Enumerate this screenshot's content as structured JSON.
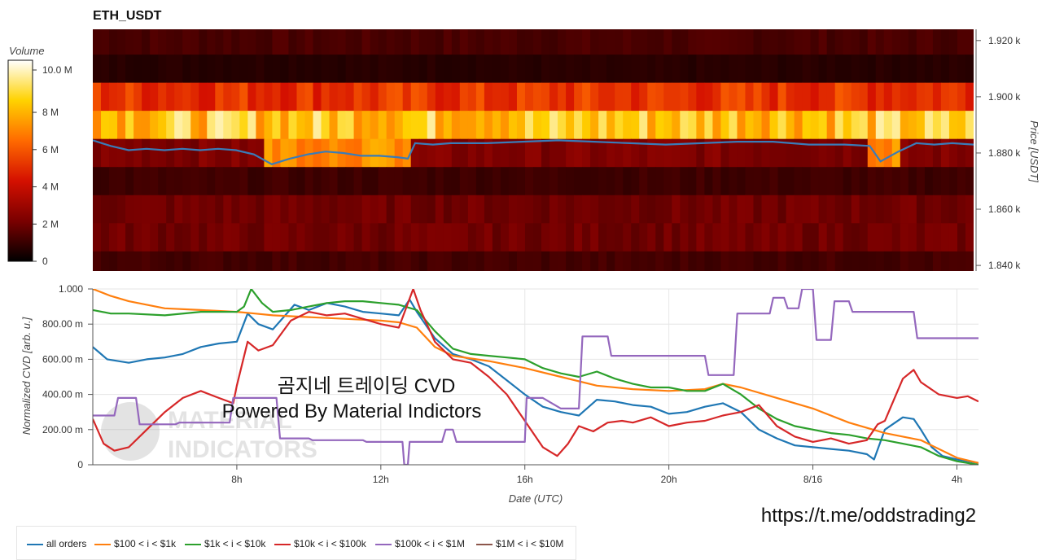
{
  "chart_data": [
    {
      "type": "heatmap",
      "title": "ETH_USDT",
      "colorbar": {
        "label": "Volume",
        "ticks": [
          "0",
          "2 M",
          "4 M",
          "6 M",
          "8 M",
          "10.0 M"
        ],
        "range": [
          0,
          10800000
        ]
      },
      "y_axis": {
        "label": "Price [USDT]",
        "ticks": [
          "1.840 k",
          "1.860 k",
          "1.880 k",
          "1.900 k",
          "1.920 k"
        ],
        "range": [
          1838,
          1924
        ]
      },
      "price_bands": [
        {
          "low": 1915,
          "high": 1924,
          "volume_M": 1.3
        },
        {
          "low": 1905,
          "high": 1915,
          "volume_M": 0.7
        },
        {
          "low": 1895,
          "high": 1905,
          "volume_M": 5.2
        },
        {
          "low": 1885,
          "high": 1895,
          "volume_M": 8.6
        },
        {
          "low": 1875,
          "high": 1885,
          "volume_M": 2.3
        },
        {
          "low": 1865,
          "high": 1875,
          "volume_M": 1.1
        },
        {
          "low": 1855,
          "high": 1865,
          "volume_M": 2.0
        },
        {
          "low": 1845,
          "high": 1855,
          "volume_M": 2.0
        },
        {
          "low": 1838,
          "high": 1845,
          "volume_M": 1.2
        }
      ],
      "price_line_color": "#3a7cb8",
      "price_series": {
        "x_hours": [
          4.0,
          4.5,
          5.0,
          5.5,
          6.0,
          6.5,
          7.0,
          7.5,
          8.0,
          8.5,
          9.0,
          9.5,
          10.0,
          10.5,
          11.0,
          11.5,
          12.0,
          12.5,
          12.8,
          13.0,
          13.5,
          14.0,
          15.0,
          16.0,
          17.0,
          18.0,
          19.0,
          20.0,
          21.0,
          22.0,
          23.0,
          24.0,
          25.0,
          25.7,
          26.0,
          26.5,
          27.0,
          27.5,
          28.0,
          28.6
        ],
        "price": [
          1884.5,
          1882.5,
          1881.0,
          1881.5,
          1881.0,
          1881.5,
          1881.0,
          1881.5,
          1881.0,
          1879.5,
          1876.0,
          1878.0,
          1879.5,
          1880.5,
          1880.0,
          1879.0,
          1879.0,
          1878.5,
          1878.0,
          1883.5,
          1883.0,
          1883.5,
          1883.5,
          1884.0,
          1884.5,
          1884.0,
          1883.5,
          1883.0,
          1883.5,
          1884.0,
          1884.0,
          1883.0,
          1883.0,
          1882.5,
          1877.0,
          1880.5,
          1883.5,
          1883.0,
          1883.5,
          1883.0
        ]
      }
    },
    {
      "type": "line",
      "xlabel": "Date (UTC)",
      "ylabel": "Normalized CVD [arb. u.]",
      "x_ticks": [
        "8h",
        "12h",
        "16h",
        "20h",
        "8/16",
        "4h"
      ],
      "x_tick_hours": [
        8,
        12,
        16,
        20,
        24,
        28
      ],
      "xlim": [
        4.0,
        28.6
      ],
      "y_ticks": [
        "0",
        "200.00 m",
        "400.00 m",
        "600.00 m",
        "800.00 m",
        "1.000"
      ],
      "ylim": [
        0,
        1.0
      ],
      "series": [
        {
          "name": "all orders",
          "color": "#1f77b4",
          "x": [
            4.0,
            4.4,
            5.0,
            5.5,
            6.0,
            6.5,
            7.0,
            7.5,
            8.0,
            8.3,
            8.6,
            9.0,
            9.3,
            9.6,
            10.0,
            10.5,
            11.0,
            11.5,
            12.0,
            12.5,
            12.8,
            13.0,
            13.5,
            14.0,
            14.5,
            15.0,
            15.5,
            16.0,
            16.5,
            17.0,
            17.5,
            18.0,
            18.5,
            19.0,
            19.5,
            20.0,
            20.5,
            21.0,
            21.5,
            22.0,
            22.5,
            23.0,
            23.5,
            24.0,
            24.5,
            25.0,
            25.5,
            25.7,
            26.0,
            26.5,
            26.8,
            27.0,
            27.3,
            27.6,
            28.0,
            28.3,
            28.6
          ],
          "y": [
            0.67,
            0.6,
            0.58,
            0.6,
            0.61,
            0.63,
            0.67,
            0.69,
            0.7,
            0.86,
            0.8,
            0.77,
            0.84,
            0.91,
            0.88,
            0.92,
            0.9,
            0.87,
            0.86,
            0.85,
            0.94,
            0.87,
            0.72,
            0.63,
            0.6,
            0.56,
            0.48,
            0.4,
            0.33,
            0.3,
            0.28,
            0.37,
            0.36,
            0.34,
            0.33,
            0.29,
            0.3,
            0.33,
            0.35,
            0.3,
            0.2,
            0.15,
            0.11,
            0.1,
            0.09,
            0.08,
            0.06,
            0.03,
            0.2,
            0.27,
            0.26,
            0.2,
            0.1,
            0.05,
            0.03,
            0.02,
            0.01
          ]
        },
        {
          "name": "$100 < i < $1k",
          "color": "#ff7f0e",
          "x": [
            4.0,
            4.5,
            5.0,
            6.0,
            7.0,
            8.0,
            8.5,
            9.0,
            10.0,
            11.0,
            12.0,
            12.5,
            13.0,
            13.5,
            14.0,
            15.0,
            16.0,
            17.0,
            18.0,
            19.0,
            20.0,
            21.0,
            21.5,
            22.0,
            23.0,
            24.0,
            25.0,
            26.0,
            27.0,
            28.0,
            28.6
          ],
          "y": [
            1.0,
            0.96,
            0.93,
            0.89,
            0.88,
            0.87,
            0.86,
            0.85,
            0.84,
            0.83,
            0.82,
            0.81,
            0.78,
            0.67,
            0.62,
            0.59,
            0.55,
            0.5,
            0.45,
            0.43,
            0.42,
            0.43,
            0.46,
            0.44,
            0.38,
            0.32,
            0.24,
            0.18,
            0.14,
            0.04,
            0.01
          ]
        },
        {
          "name": "$1k < i < $10k",
          "color": "#2ca02c",
          "x": [
            4.0,
            4.5,
            5.0,
            6.0,
            7.0,
            8.0,
            8.2,
            8.4,
            8.7,
            9.0,
            9.5,
            10.0,
            10.5,
            11.0,
            11.5,
            12.0,
            12.5,
            13.0,
            13.5,
            14.0,
            14.5,
            15.0,
            15.5,
            16.0,
            16.5,
            17.0,
            17.5,
            18.0,
            18.5,
            19.0,
            19.5,
            20.0,
            20.5,
            21.0,
            21.5,
            22.0,
            22.5,
            23.0,
            23.5,
            24.0,
            24.5,
            25.0,
            25.5,
            26.0,
            26.5,
            27.0,
            27.5,
            28.0,
            28.6
          ],
          "y": [
            0.88,
            0.86,
            0.86,
            0.85,
            0.87,
            0.87,
            0.9,
            1.0,
            0.92,
            0.87,
            0.88,
            0.9,
            0.92,
            0.93,
            0.93,
            0.92,
            0.91,
            0.88,
            0.76,
            0.66,
            0.63,
            0.62,
            0.61,
            0.6,
            0.55,
            0.52,
            0.5,
            0.53,
            0.49,
            0.46,
            0.44,
            0.44,
            0.42,
            0.42,
            0.46,
            0.4,
            0.32,
            0.26,
            0.22,
            0.2,
            0.18,
            0.17,
            0.15,
            0.14,
            0.12,
            0.1,
            0.05,
            0.02,
            0.0
          ]
        },
        {
          "name": "$10k < i < $100k",
          "color": "#d62728",
          "x": [
            4.0,
            4.3,
            4.6,
            5.0,
            5.5,
            6.0,
            6.5,
            7.0,
            7.5,
            7.9,
            8.0,
            8.3,
            8.6,
            9.0,
            9.5,
            10.0,
            10.5,
            11.0,
            11.5,
            12.0,
            12.5,
            12.9,
            13.1,
            13.5,
            14.0,
            14.5,
            15.0,
            15.5,
            16.0,
            16.5,
            16.9,
            17.2,
            17.5,
            17.9,
            18.3,
            18.7,
            19.0,
            19.5,
            20.0,
            20.5,
            21.0,
            21.5,
            22.0,
            22.5,
            23.0,
            23.5,
            24.0,
            24.5,
            25.0,
            25.5,
            25.8,
            26.0,
            26.5,
            26.8,
            27.0,
            27.5,
            28.0,
            28.3,
            28.6
          ],
          "y": [
            0.26,
            0.12,
            0.08,
            0.1,
            0.2,
            0.3,
            0.38,
            0.42,
            0.38,
            0.35,
            0.45,
            0.7,
            0.65,
            0.68,
            0.82,
            0.87,
            0.85,
            0.86,
            0.83,
            0.8,
            0.78,
            1.0,
            0.88,
            0.7,
            0.6,
            0.58,
            0.5,
            0.4,
            0.25,
            0.1,
            0.05,
            0.12,
            0.22,
            0.19,
            0.24,
            0.25,
            0.24,
            0.27,
            0.22,
            0.24,
            0.25,
            0.28,
            0.3,
            0.34,
            0.22,
            0.16,
            0.13,
            0.15,
            0.12,
            0.14,
            0.23,
            0.25,
            0.49,
            0.54,
            0.47,
            0.4,
            0.38,
            0.39,
            0.36
          ]
        },
        {
          "name": "$100k < i < $1M",
          "color": "#9467bd",
          "x": [
            4.0,
            4.6,
            4.7,
            5.2,
            5.3,
            6.3,
            6.4,
            7.8,
            7.9,
            9.1,
            9.2,
            10.0,
            10.1,
            11.5,
            11.6,
            12.6,
            12.65,
            12.75,
            12.8,
            13.7,
            13.8,
            14.0,
            14.1,
            16.0,
            16.05,
            16.5,
            17.0,
            17.5,
            17.6,
            18.3,
            18.4,
            20.4,
            20.5,
            21.0,
            21.1,
            21.8,
            21.9,
            22.8,
            22.9,
            23.2,
            23.3,
            23.6,
            23.7,
            24.0,
            24.1,
            24.5,
            24.6,
            25.0,
            25.1,
            26.8,
            26.9,
            28.6
          ],
          "y": [
            0.28,
            0.28,
            0.38,
            0.38,
            0.23,
            0.23,
            0.24,
            0.24,
            0.38,
            0.38,
            0.15,
            0.15,
            0.14,
            0.14,
            0.13,
            0.13,
            0.0,
            0.0,
            0.13,
            0.13,
            0.2,
            0.2,
            0.13,
            0.13,
            0.38,
            0.38,
            0.32,
            0.32,
            0.73,
            0.73,
            0.62,
            0.62,
            0.62,
            0.62,
            0.51,
            0.51,
            0.86,
            0.86,
            0.95,
            0.95,
            0.89,
            0.89,
            1.0,
            1.0,
            0.71,
            0.71,
            0.93,
            0.93,
            0.87,
            0.87,
            0.72,
            0.72
          ]
        },
        {
          "name": "$1M < i < $10M",
          "color": "#8c564b",
          "x": [],
          "y": []
        }
      ]
    }
  ],
  "overlay": {
    "line1": "곰지네 트레이딩 CVD",
    "line2": "Powered By Material Indictors",
    "url": "https://t.me/oddstrading2"
  },
  "legend": [
    {
      "label": "all orders",
      "color": "#1f77b4"
    },
    {
      "label": "$100 < i < $1k",
      "color": "#ff7f0e"
    },
    {
      "label": "$1k < i < $10k",
      "color": "#2ca02c"
    },
    {
      "label": "$10k < i < $100k",
      "color": "#d62728"
    },
    {
      "label": "$100k < i < $1M",
      "color": "#9467bd"
    },
    {
      "label": "$1M < i < $10M",
      "color": "#8c564b"
    }
  ]
}
